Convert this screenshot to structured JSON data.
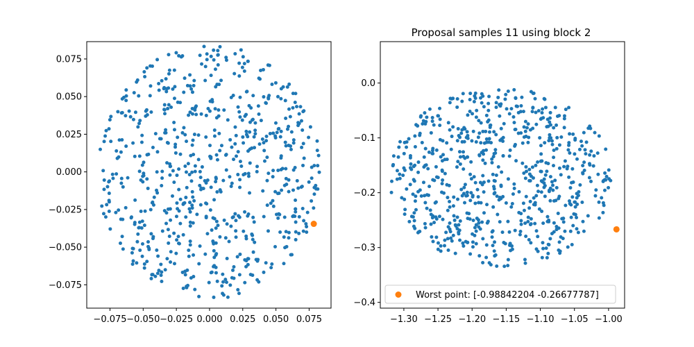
{
  "chart_data": [
    {
      "type": "scatter",
      "title": "",
      "xlabel": "",
      "ylabel": "",
      "xlim": [
        -0.0925,
        0.0915
      ],
      "ylim": [
        -0.0905,
        0.0865
      ],
      "xticks": [
        -0.075,
        -0.05,
        -0.025,
        0.0,
        0.025,
        0.05,
        0.075
      ],
      "xtick_labels": [
        "−0.075",
        "−0.050",
        "−0.025",
        "0.000",
        "0.025",
        "0.050",
        "0.075"
      ],
      "yticks": [
        -0.075,
        -0.05,
        -0.025,
        0.0,
        0.025,
        0.05,
        0.075
      ],
      "ytick_labels": [
        "−0.075",
        "−0.050",
        "−0.025",
        "0.000",
        "0.025",
        "0.050",
        "0.075"
      ],
      "grid": false,
      "cloud": {
        "center": [
          0.0,
          0.0
        ],
        "radius": 0.0845,
        "count": 700
      },
      "series": [
        {
          "color": "#1f77b4",
          "marker_size": 2.5
        },
        {
          "color": "#ff7f0e",
          "marker_size": 4.5,
          "points": [
            [
              0.0785,
              -0.0345
            ]
          ]
        }
      ]
    },
    {
      "type": "scatter",
      "title": "Proposal samples 11 using block 2",
      "xlabel": "",
      "ylabel": "",
      "xlim": [
        -1.3345,
        -0.9765
      ],
      "ylim": [
        -0.4105,
        0.0755
      ],
      "xticks": [
        -1.3,
        -1.25,
        -1.2,
        -1.15,
        -1.1,
        -1.05,
        -1.0
      ],
      "xtick_labels": [
        "−1.30",
        "−1.25",
        "−1.20",
        "−1.15",
        "−1.10",
        "−1.05",
        "−1.00"
      ],
      "yticks": [
        0.0,
        -0.1,
        -0.2,
        -0.3,
        -0.4
      ],
      "ytick_labels": [
        "0.0",
        "−0.1",
        "−0.2",
        "−0.3",
        "−0.4"
      ],
      "grid": false,
      "cloud": {
        "center": [
          -1.1575,
          -0.172
        ],
        "radius": 0.1635,
        "count": 700
      },
      "series": [
        {
          "color": "#1f77b4",
          "marker_size": 2.5
        },
        {
          "name": "Worst point: [-0.98842204 -0.26677787]",
          "color": "#ff7f0e",
          "marker_size": 4.5,
          "points": [
            [
              -0.98842204,
              -0.26677787
            ]
          ]
        }
      ],
      "legend": {
        "placement": "lower right",
        "entries": [
          "Worst point: [-0.98842204 -0.26677787]"
        ]
      }
    }
  ]
}
